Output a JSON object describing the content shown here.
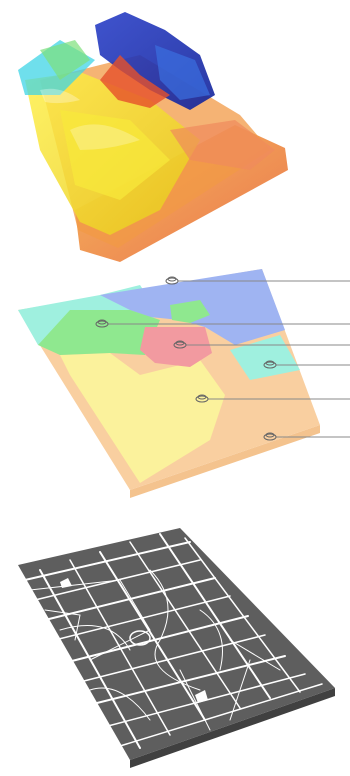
{
  "figure": {
    "panels": [
      {
        "id": "surface",
        "colors": {
          "blue": "#1f3fb8",
          "cyan": "#3fd4e6",
          "green": "#7ee07a",
          "yellow": "#f5e52a",
          "orange": "#f29a45",
          "red": "#e6502a",
          "salmon": "#f08a5c"
        }
      },
      {
        "id": "zoning",
        "zones": [
          {
            "name": "zone-blue",
            "color": "#9fb4f2"
          },
          {
            "name": "zone-cyan",
            "color": "#9ff0df"
          },
          {
            "name": "zone-green",
            "color": "#8fe88f"
          },
          {
            "name": "zone-red",
            "color": "#f29aa0"
          },
          {
            "name": "zone-yellow",
            "color": "#fbf29c"
          },
          {
            "name": "zone-orange",
            "color": "#f9cfa0"
          }
        ],
        "markers": 6
      },
      {
        "id": "street-network",
        "colors": {
          "blocks": "#5e5e5e",
          "streets": "#ffffff"
        }
      }
    ]
  }
}
